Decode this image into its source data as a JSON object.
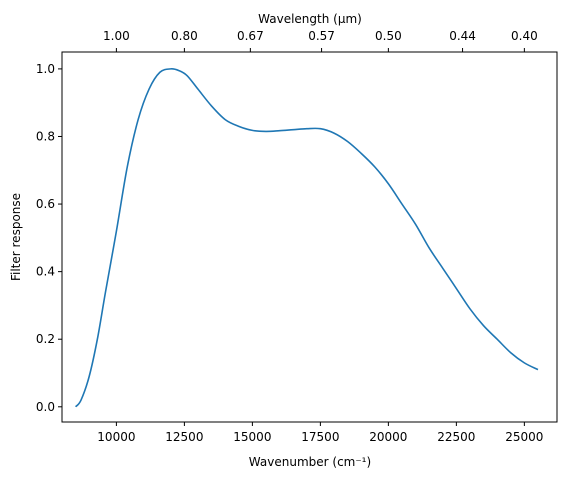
{
  "chart_data": {
    "type": "line",
    "xlabel": "Wavenumber (cm⁻¹)",
    "ylabel": "Filter response",
    "top_xlabel": "Wavelength (μm)",
    "xlim": [
      8000,
      26200
    ],
    "ylim": [
      -0.045,
      1.05
    ],
    "x_ticks": [
      10000,
      12500,
      15000,
      17500,
      20000,
      22500,
      25000
    ],
    "x_tick_labels": [
      "10000",
      "12500",
      "15000",
      "17500",
      "20000",
      "22500",
      "25000"
    ],
    "y_ticks": [
      0.0,
      0.2,
      0.4,
      0.6,
      0.8,
      1.0
    ],
    "y_tick_labels": [
      "0.0",
      "0.2",
      "0.4",
      "0.6",
      "0.8",
      "1.0"
    ],
    "top_ticks_um": [
      1.0,
      0.8,
      0.67,
      0.57,
      0.5,
      0.44,
      0.4
    ],
    "top_tick_labels": [
      "1.00",
      "0.80",
      "0.67",
      "0.57",
      "0.50",
      "0.44",
      "0.40"
    ],
    "line_color": "#1f77b4",
    "series": [
      {
        "x": [
          8500,
          8700,
          9000,
          9300,
          9600,
          10000,
          10400,
          10800,
          11200,
          11600,
          12000,
          12300,
          12600,
          13000,
          13500,
          14000,
          14500,
          15000,
          15500,
          16000,
          16500,
          17000,
          17500,
          18000,
          18500,
          19000,
          19500,
          20000,
          20500,
          21000,
          21500,
          22000,
          22500,
          23000,
          23500,
          24000,
          24500,
          25000,
          25500
        ],
        "y": [
          0.0,
          0.02,
          0.09,
          0.2,
          0.34,
          0.52,
          0.71,
          0.85,
          0.94,
          0.99,
          1.0,
          0.995,
          0.98,
          0.94,
          0.89,
          0.85,
          0.83,
          0.818,
          0.815,
          0.817,
          0.82,
          0.823,
          0.823,
          0.81,
          0.785,
          0.75,
          0.71,
          0.66,
          0.6,
          0.54,
          0.47,
          0.41,
          0.35,
          0.29,
          0.24,
          0.2,
          0.16,
          0.13,
          0.11
        ]
      }
    ]
  }
}
